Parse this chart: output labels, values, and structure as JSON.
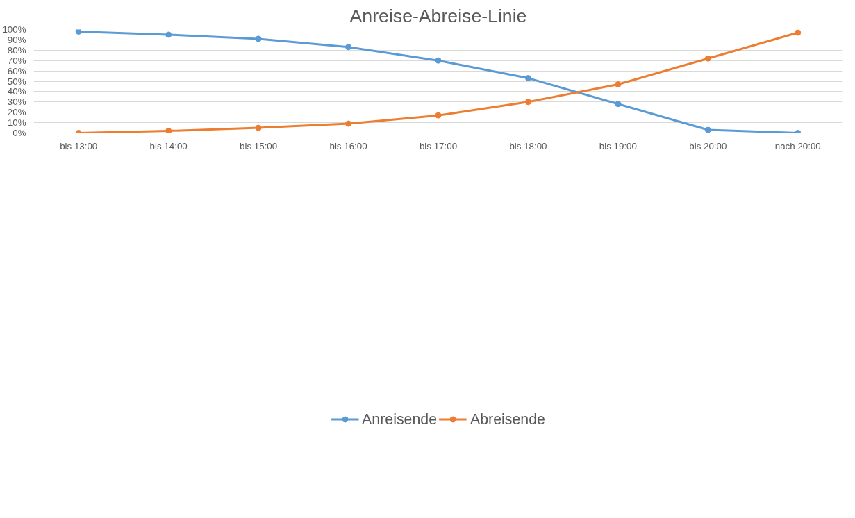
{
  "chart_data": {
    "type": "line",
    "title": "Anreise-Abreise-Linie",
    "categories": [
      "bis 13:00",
      "bis 14:00",
      "bis 15:00",
      "bis 16:00",
      "bis 17:00",
      "bis 18:00",
      "bis 19:00",
      "bis 20:00",
      "nach 20:00"
    ],
    "series": [
      {
        "name": "Anreisende",
        "color": "#5b9bd5",
        "values": [
          98,
          95,
          91,
          83,
          70,
          53,
          28,
          3,
          0
        ]
      },
      {
        "name": "Abreisende",
        "color": "#ed7d31",
        "values": [
          0,
          2,
          5,
          9,
          17,
          30,
          47,
          72,
          97
        ]
      }
    ],
    "ylim": [
      0,
      100
    ],
    "yticks": [
      {
        "value": 0,
        "label": "0%"
      },
      {
        "value": 10,
        "label": "10%"
      },
      {
        "value": 20,
        "label": "20%"
      },
      {
        "value": 30,
        "label": "30%"
      },
      {
        "value": 40,
        "label": "40%"
      },
      {
        "value": 50,
        "label": "50%"
      },
      {
        "value": 60,
        "label": "60%"
      },
      {
        "value": 70,
        "label": "70%"
      },
      {
        "value": 80,
        "label": "80%"
      },
      {
        "value": 90,
        "label": "90%"
      },
      {
        "value": 100,
        "label": "100%"
      }
    ],
    "grid": "y",
    "legend": "bottom",
    "marker": "circle",
    "line_style": "solid"
  }
}
